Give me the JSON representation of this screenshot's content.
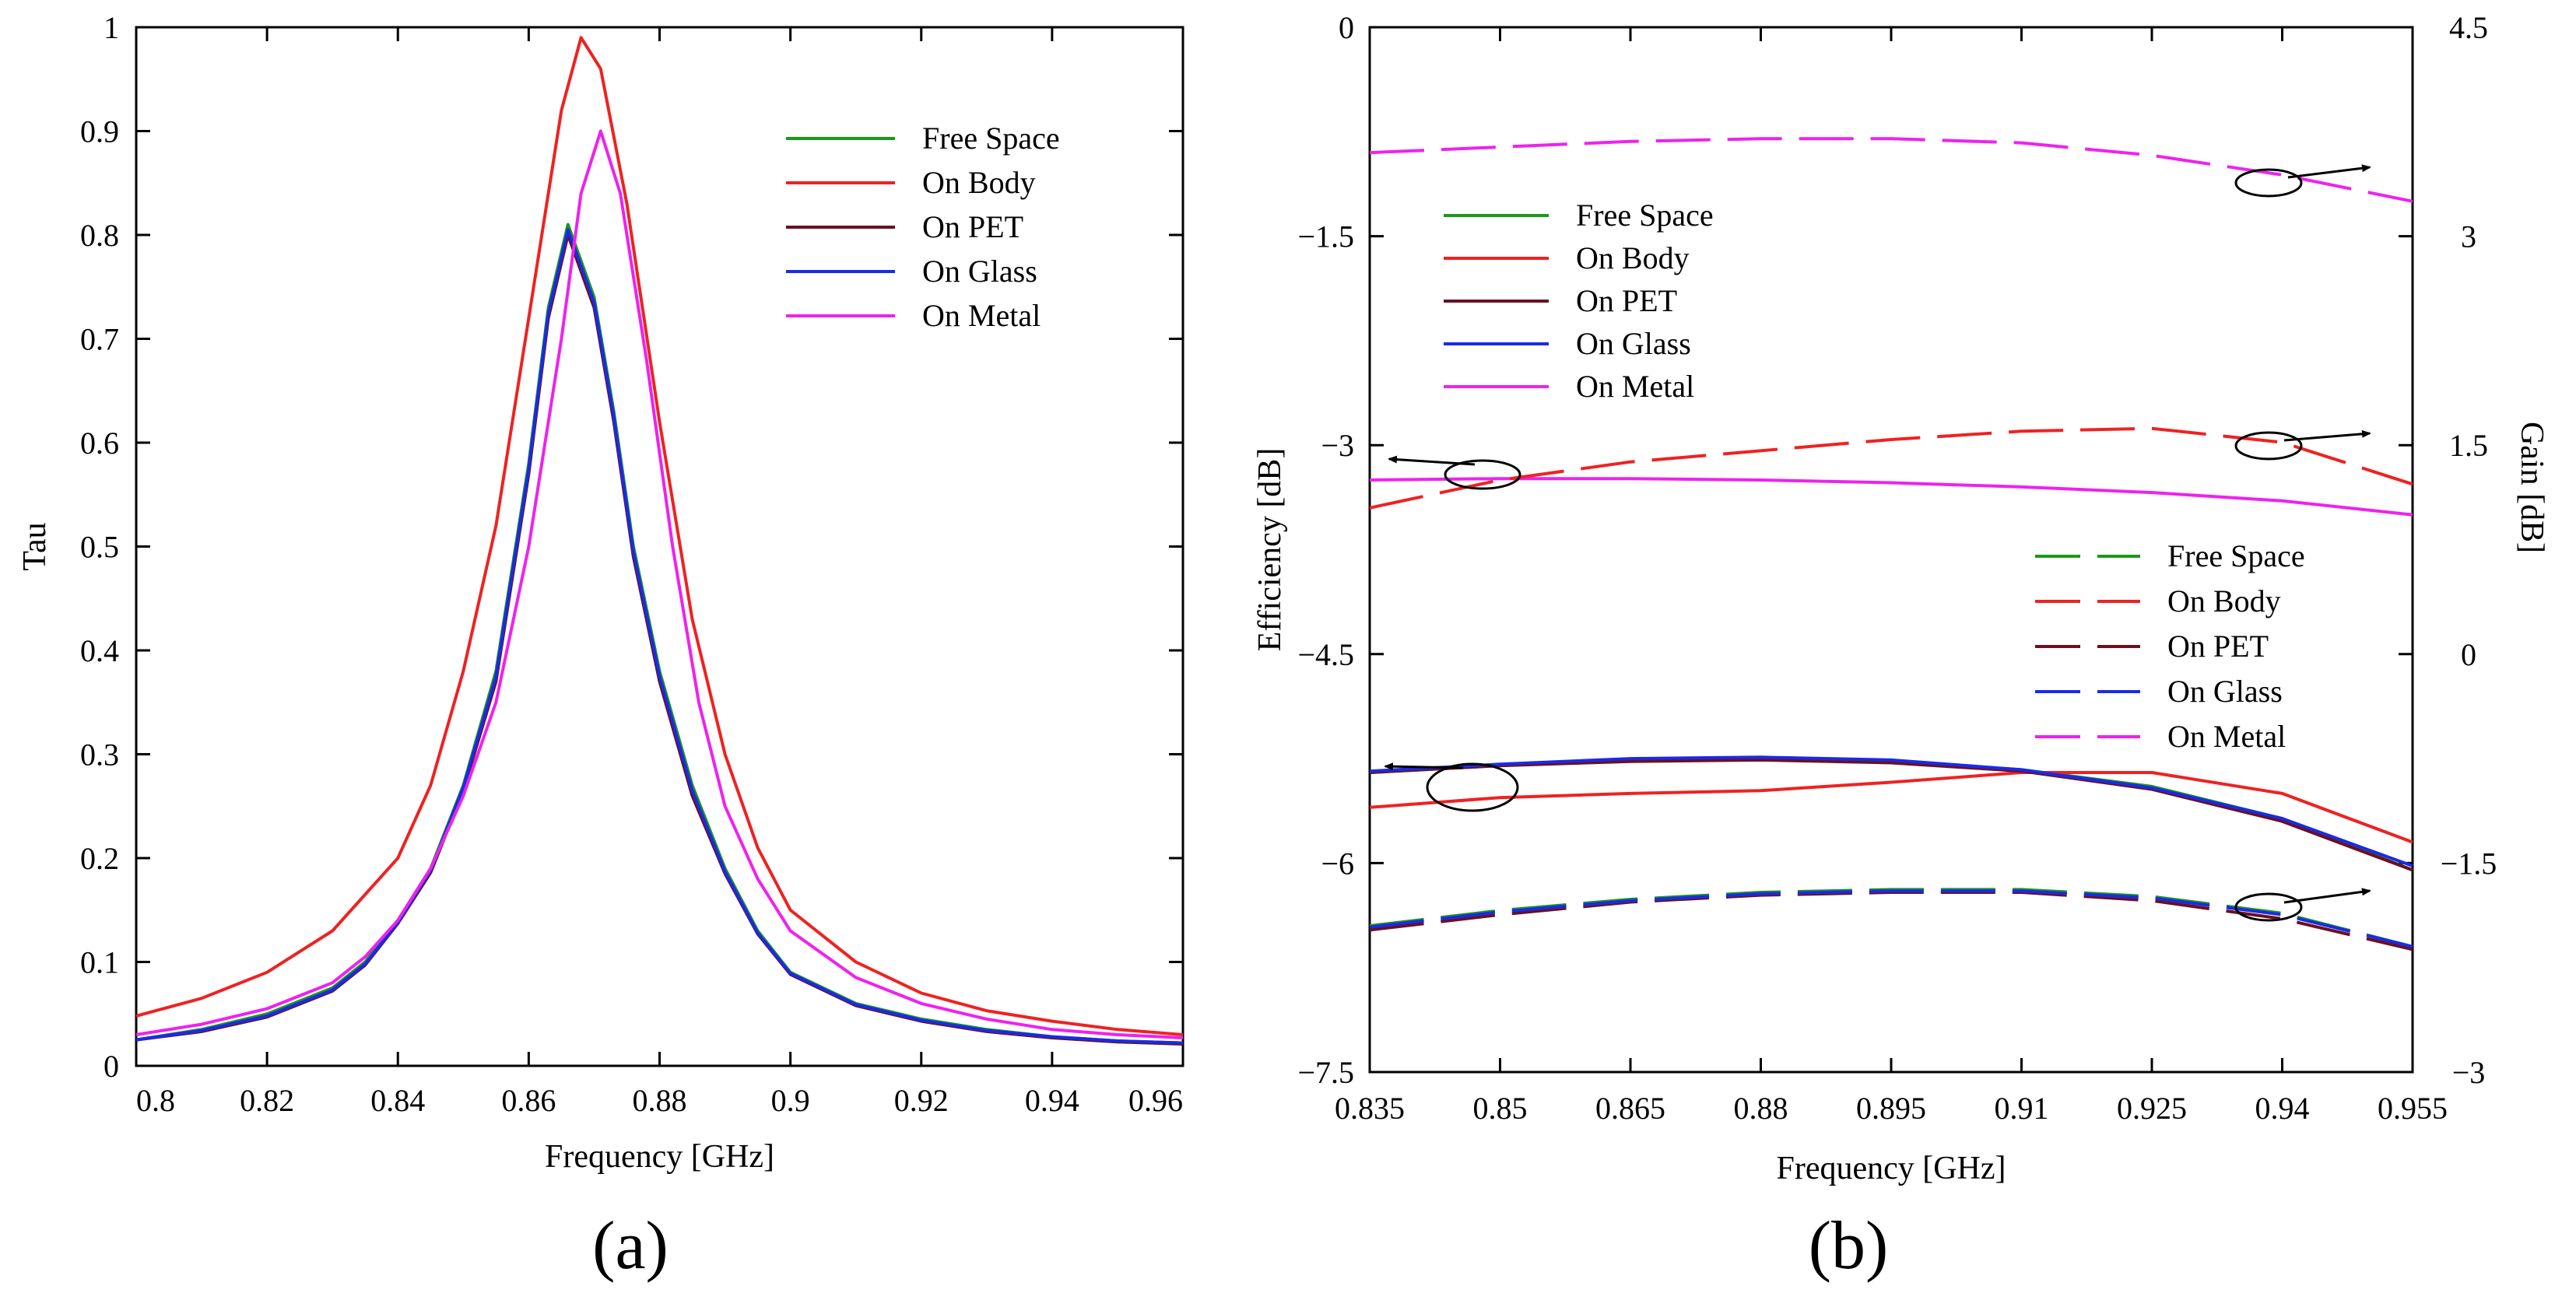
{
  "chart_data": [
    {
      "type": "line",
      "panel": "(a)",
      "caption": "(a)",
      "xlabel": "Frequency [GHz]",
      "ylabel": "Tau",
      "xlim": [
        0.8,
        0.96
      ],
      "ylim": [
        0,
        1
      ],
      "x_ticks": [
        "0.8",
        "0.82",
        "0.84",
        "0.86",
        "0.88",
        "0.9",
        "0.92",
        "0.94",
        "0.96"
      ],
      "y_ticks": [
        "0",
        "0.1",
        "0.2",
        "0.3",
        "0.4",
        "0.5",
        "0.6",
        "0.7",
        "0.8",
        "0.9",
        "1"
      ],
      "legend_position": "upper-right",
      "series": [
        {
          "name": "Free Space",
          "color": "#1a9a1a",
          "dash": false,
          "points": [
            [
              0.8,
              0.025
            ],
            [
              0.81,
              0.035
            ],
            [
              0.82,
              0.05
            ],
            [
              0.83,
              0.075
            ],
            [
              0.835,
              0.1
            ],
            [
              0.84,
              0.14
            ],
            [
              0.845,
              0.19
            ],
            [
              0.85,
              0.27
            ],
            [
              0.855,
              0.38
            ],
            [
              0.86,
              0.58
            ],
            [
              0.863,
              0.73
            ],
            [
              0.866,
              0.81
            ],
            [
              0.87,
              0.74
            ],
            [
              0.873,
              0.63
            ],
            [
              0.876,
              0.5
            ],
            [
              0.88,
              0.38
            ],
            [
              0.885,
              0.27
            ],
            [
              0.89,
              0.19
            ],
            [
              0.895,
              0.13
            ],
            [
              0.9,
              0.09
            ],
            [
              0.91,
              0.06
            ],
            [
              0.92,
              0.045
            ],
            [
              0.93,
              0.035
            ],
            [
              0.94,
              0.028
            ],
            [
              0.95,
              0.024
            ],
            [
              0.96,
              0.022
            ]
          ]
        },
        {
          "name": "On Body",
          "color": "#ee2222",
          "dash": false,
          "points": [
            [
              0.8,
              0.048
            ],
            [
              0.81,
              0.065
            ],
            [
              0.82,
              0.09
            ],
            [
              0.83,
              0.13
            ],
            [
              0.84,
              0.2
            ],
            [
              0.845,
              0.27
            ],
            [
              0.85,
              0.38
            ],
            [
              0.855,
              0.52
            ],
            [
              0.86,
              0.72
            ],
            [
              0.865,
              0.92
            ],
            [
              0.868,
              0.99
            ],
            [
              0.871,
              0.96
            ],
            [
              0.875,
              0.83
            ],
            [
              0.88,
              0.62
            ],
            [
              0.885,
              0.43
            ],
            [
              0.89,
              0.3
            ],
            [
              0.895,
              0.21
            ],
            [
              0.9,
              0.15
            ],
            [
              0.91,
              0.1
            ],
            [
              0.92,
              0.07
            ],
            [
              0.93,
              0.053
            ],
            [
              0.94,
              0.043
            ],
            [
              0.95,
              0.035
            ],
            [
              0.96,
              0.03
            ]
          ]
        },
        {
          "name": "On PET",
          "color": "#6a1020",
          "dash": false,
          "points": [
            [
              0.8,
              0.025
            ],
            [
              0.81,
              0.033
            ],
            [
              0.82,
              0.047
            ],
            [
              0.83,
              0.072
            ],
            [
              0.835,
              0.097
            ],
            [
              0.84,
              0.137
            ],
            [
              0.845,
              0.186
            ],
            [
              0.85,
              0.265
            ],
            [
              0.855,
              0.37
            ],
            [
              0.86,
              0.57
            ],
            [
              0.863,
              0.72
            ],
            [
              0.866,
              0.8
            ],
            [
              0.87,
              0.73
            ],
            [
              0.873,
              0.62
            ],
            [
              0.876,
              0.49
            ],
            [
              0.88,
              0.37
            ],
            [
              0.885,
              0.26
            ],
            [
              0.89,
              0.185
            ],
            [
              0.895,
              0.127
            ],
            [
              0.9,
              0.088
            ],
            [
              0.91,
              0.058
            ],
            [
              0.92,
              0.043
            ],
            [
              0.93,
              0.033
            ],
            [
              0.94,
              0.027
            ],
            [
              0.95,
              0.023
            ],
            [
              0.96,
              0.021
            ]
          ]
        },
        {
          "name": "On Glass",
          "color": "#1a2ae8",
          "dash": false,
          "points": [
            [
              0.8,
              0.025
            ],
            [
              0.81,
              0.034
            ],
            [
              0.82,
              0.048
            ],
            [
              0.83,
              0.073
            ],
            [
              0.835,
              0.098
            ],
            [
              0.84,
              0.138
            ],
            [
              0.845,
              0.188
            ],
            [
              0.85,
              0.268
            ],
            [
              0.855,
              0.375
            ],
            [
              0.86,
              0.575
            ],
            [
              0.863,
              0.725
            ],
            [
              0.866,
              0.805
            ],
            [
              0.87,
              0.735
            ],
            [
              0.873,
              0.625
            ],
            [
              0.876,
              0.495
            ],
            [
              0.88,
              0.375
            ],
            [
              0.885,
              0.265
            ],
            [
              0.89,
              0.187
            ],
            [
              0.895,
              0.128
            ],
            [
              0.9,
              0.089
            ],
            [
              0.91,
              0.059
            ],
            [
              0.92,
              0.044
            ],
            [
              0.93,
              0.034
            ],
            [
              0.94,
              0.028
            ],
            [
              0.95,
              0.024
            ],
            [
              0.96,
              0.022
            ]
          ]
        },
        {
          "name": "On Metal",
          "color": "#ee22ee",
          "dash": false,
          "points": [
            [
              0.8,
              0.03
            ],
            [
              0.81,
              0.04
            ],
            [
              0.82,
              0.055
            ],
            [
              0.83,
              0.08
            ],
            [
              0.835,
              0.105
            ],
            [
              0.84,
              0.14
            ],
            [
              0.845,
              0.19
            ],
            [
              0.85,
              0.26
            ],
            [
              0.855,
              0.35
            ],
            [
              0.86,
              0.5
            ],
            [
              0.865,
              0.7
            ],
            [
              0.868,
              0.84
            ],
            [
              0.871,
              0.9
            ],
            [
              0.874,
              0.84
            ],
            [
              0.878,
              0.68
            ],
            [
              0.882,
              0.5
            ],
            [
              0.886,
              0.35
            ],
            [
              0.89,
              0.25
            ],
            [
              0.895,
              0.18
            ],
            [
              0.9,
              0.13
            ],
            [
              0.91,
              0.085
            ],
            [
              0.92,
              0.06
            ],
            [
              0.93,
              0.045
            ],
            [
              0.94,
              0.035
            ],
            [
              0.95,
              0.03
            ],
            [
              0.96,
              0.027
            ]
          ]
        }
      ]
    },
    {
      "type": "line",
      "panel": "(b)",
      "caption": "(b)",
      "xlabel": "Frequency [GHz]",
      "ylabel": "Efficiency [dB]",
      "y2label": "Gain [dB]",
      "xlim": [
        0.835,
        0.955
      ],
      "ylim": [
        -7.5,
        0
      ],
      "y2lim": [
        -3,
        4.5
      ],
      "x_ticks": [
        "0.835",
        "0.85",
        "0.865",
        "0.88",
        "0.895",
        "0.91",
        "0.925",
        "0.94",
        "0.955"
      ],
      "y_ticks": [
        "−7.5",
        "−6",
        "−4.5",
        "−3",
        "−1.5",
        "0"
      ],
      "y2_ticks": [
        "−3",
        "−1.5",
        "0",
        "1.5",
        "3",
        "4.5"
      ],
      "legend_solid": [
        "Free Space",
        "On Body",
        "On PET",
        "On Glass",
        "On Metal"
      ],
      "legend_dashed": [
        "Free Space",
        "On Body",
        "On PET",
        "On Glass",
        "On Metal"
      ],
      "legend_position": "solid upper-left, dashed lower-right",
      "series": [
        {
          "name": "Free Space",
          "kind": "efficiency",
          "axis": "left",
          "color": "#1a9a1a",
          "dash": false,
          "points": [
            [
              0.835,
              -5.35
            ],
            [
              0.85,
              -5.3
            ],
            [
              0.865,
              -5.26
            ],
            [
              0.88,
              -5.25
            ],
            [
              0.895,
              -5.27
            ],
            [
              0.91,
              -5.33
            ],
            [
              0.925,
              -5.45
            ],
            [
              0.94,
              -5.68
            ],
            [
              0.955,
              -6.05
            ]
          ]
        },
        {
          "name": "On Body",
          "kind": "efficiency",
          "axis": "left",
          "color": "#ee2222",
          "dash": false,
          "points": [
            [
              0.835,
              -5.6
            ],
            [
              0.85,
              -5.53
            ],
            [
              0.865,
              -5.5
            ],
            [
              0.88,
              -5.48
            ],
            [
              0.895,
              -5.42
            ],
            [
              0.91,
              -5.35
            ],
            [
              0.925,
              -5.35
            ],
            [
              0.94,
              -5.5
            ],
            [
              0.955,
              -5.85
            ]
          ]
        },
        {
          "name": "On PET",
          "kind": "efficiency",
          "axis": "left",
          "color": "#6a1020",
          "dash": false,
          "points": [
            [
              0.835,
              -5.35
            ],
            [
              0.85,
              -5.3
            ],
            [
              0.865,
              -5.27
            ],
            [
              0.88,
              -5.26
            ],
            [
              0.895,
              -5.28
            ],
            [
              0.91,
              -5.34
            ],
            [
              0.925,
              -5.47
            ],
            [
              0.94,
              -5.7
            ],
            [
              0.955,
              -6.05
            ]
          ]
        },
        {
          "name": "On Glass",
          "kind": "efficiency",
          "axis": "left",
          "color": "#1a2ae8",
          "dash": false,
          "points": [
            [
              0.835,
              -5.34
            ],
            [
              0.85,
              -5.29
            ],
            [
              0.865,
              -5.25
            ],
            [
              0.88,
              -5.24
            ],
            [
              0.895,
              -5.26
            ],
            [
              0.91,
              -5.33
            ],
            [
              0.925,
              -5.46
            ],
            [
              0.94,
              -5.68
            ],
            [
              0.955,
              -6.02
            ]
          ]
        },
        {
          "name": "On Metal",
          "kind": "efficiency",
          "axis": "left",
          "color": "#ee22ee",
          "dash": false,
          "points": [
            [
              0.835,
              -3.25
            ],
            [
              0.85,
              -3.24
            ],
            [
              0.865,
              -3.24
            ],
            [
              0.88,
              -3.25
            ],
            [
              0.895,
              -3.27
            ],
            [
              0.91,
              -3.3
            ],
            [
              0.925,
              -3.34
            ],
            [
              0.94,
              -3.4
            ],
            [
              0.955,
              -3.5
            ]
          ]
        },
        {
          "name": "Free Space",
          "kind": "gain",
          "axis": "right",
          "color": "#1a9a1a",
          "dash": true,
          "points": [
            [
              0.835,
              -1.95
            ],
            [
              0.85,
              -1.84
            ],
            [
              0.865,
              -1.76
            ],
            [
              0.88,
              -1.71
            ],
            [
              0.895,
              -1.69
            ],
            [
              0.91,
              -1.69
            ],
            [
              0.925,
              -1.74
            ],
            [
              0.94,
              -1.86
            ],
            [
              0.955,
              -2.1
            ]
          ]
        },
        {
          "name": "On Body",
          "kind": "gain",
          "axis": "right",
          "color": "#ee2222",
          "dash": true,
          "points": [
            [
              0.835,
              1.05
            ],
            [
              0.85,
              1.25
            ],
            [
              0.865,
              1.38
            ],
            [
              0.88,
              1.46
            ],
            [
              0.895,
              1.54
            ],
            [
              0.91,
              1.6
            ],
            [
              0.925,
              1.62
            ],
            [
              0.94,
              1.52
            ],
            [
              0.955,
              1.22
            ]
          ]
        },
        {
          "name": "On PET",
          "kind": "gain",
          "axis": "right",
          "color": "#6a1020",
          "dash": true,
          "points": [
            [
              0.835,
              -1.98
            ],
            [
              0.85,
              -1.87
            ],
            [
              0.865,
              -1.78
            ],
            [
              0.88,
              -1.73
            ],
            [
              0.895,
              -1.71
            ],
            [
              0.91,
              -1.71
            ],
            [
              0.925,
              -1.77
            ],
            [
              0.94,
              -1.9
            ],
            [
              0.955,
              -2.12
            ]
          ]
        },
        {
          "name": "On Glass",
          "kind": "gain",
          "axis": "right",
          "color": "#1a2ae8",
          "dash": true,
          "points": [
            [
              0.835,
              -1.96
            ],
            [
              0.85,
              -1.85
            ],
            [
              0.865,
              -1.77
            ],
            [
              0.88,
              -1.72
            ],
            [
              0.895,
              -1.7
            ],
            [
              0.91,
              -1.7
            ],
            [
              0.925,
              -1.75
            ],
            [
              0.94,
              -1.87
            ],
            [
              0.955,
              -2.1
            ]
          ]
        },
        {
          "name": "On Metal",
          "kind": "gain",
          "axis": "right",
          "color": "#ee22ee",
          "dash": true,
          "points": [
            [
              0.835,
              3.6
            ],
            [
              0.85,
              3.64
            ],
            [
              0.865,
              3.68
            ],
            [
              0.88,
              3.7
            ],
            [
              0.895,
              3.7
            ],
            [
              0.91,
              3.67
            ],
            [
              0.925,
              3.58
            ],
            [
              0.94,
              3.44
            ],
            [
              0.955,
              3.25
            ]
          ]
        }
      ]
    }
  ]
}
